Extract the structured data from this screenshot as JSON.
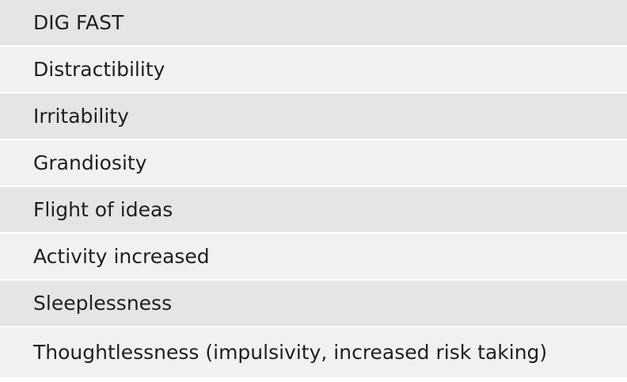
{
  "table": {
    "header": "DIG FAST",
    "rows": [
      "Distractibility",
      "Irritability",
      "Grandiosity",
      "Flight of ideas",
      "Activity increased",
      "Sleeplessness",
      "Thoughtlessness (impulsivity, increased risk taking)"
    ]
  },
  "colors": {
    "row_dark": "#e5e5e6",
    "row_light": "#f1f1f2",
    "text": "#1f1f1f"
  }
}
